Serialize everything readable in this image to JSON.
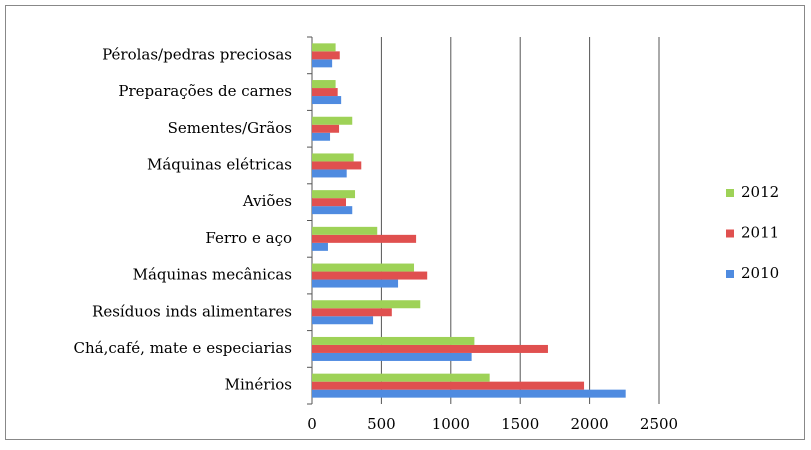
{
  "chart_data": {
    "type": "barh",
    "categories": [
      "Minérios",
      "Chá,café, mate e especiarias",
      "Resíduos inds alimentares",
      "Máquinas mecânicas",
      "Ferro e aço",
      "Aviões",
      "Máquinas elétricas",
      "Sementes/Grãos",
      "Preparações de carnes",
      "Pérolas/pedras preciosas"
    ],
    "series": [
      {
        "name": "2010",
        "color": "#4f8be0",
        "values": [
          2260,
          1150,
          440,
          620,
          115,
          290,
          250,
          130,
          210,
          145
        ]
      },
      {
        "name": "2011",
        "color": "#e0504f",
        "values": [
          1960,
          1700,
          575,
          830,
          750,
          245,
          355,
          195,
          185,
          200
        ]
      },
      {
        "name": "2012",
        "color": "#9ed257",
        "values": [
          1280,
          1170,
          780,
          735,
          470,
          310,
          300,
          290,
          170,
          170
        ]
      }
    ],
    "xlim": [
      0,
      2500
    ],
    "xticks": [
      0,
      500,
      1000,
      1500,
      2000,
      2500
    ],
    "grid": true,
    "legend": "right"
  }
}
